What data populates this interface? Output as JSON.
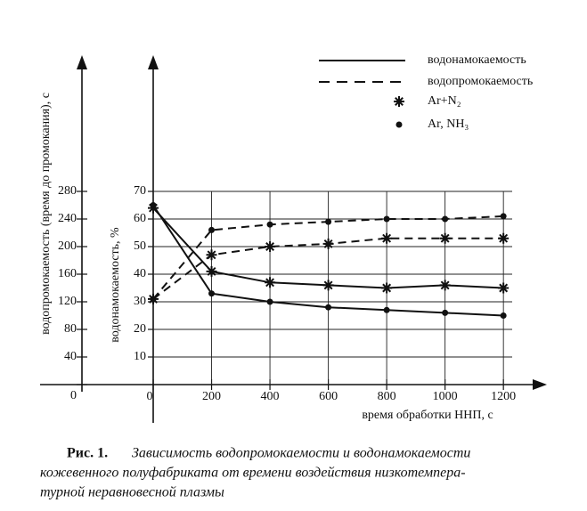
{
  "chart_data": {
    "type": "line",
    "ylabel": "водонамокаемость, %",
    "y2label": "водопромокаемость (время до промокания), с",
    "xlabel": "время обработки ННП, с",
    "caption_label": "Рис. 1.",
    "caption": [
      "Зависимость водопромокаемости и водонамокаемости",
      "кожевенного полуфабриката от времени воздействия низкотемпера-",
      "турной неравновесной плазмы"
    ],
    "x": [
      0,
      200,
      400,
      600,
      800,
      1000,
      1200
    ],
    "xlim": [
      0,
      1230
    ],
    "xticks": [
      0,
      200,
      400,
      600,
      800,
      1000,
      1200
    ],
    "ylim": [
      0,
      70
    ],
    "yticks": [
      10,
      20,
      30,
      40,
      50,
      60,
      70
    ],
    "y2lim": [
      0,
      280
    ],
    "y2ticks": [
      0,
      40,
      80,
      120,
      160,
      200,
      240,
      280
    ],
    "grid": true,
    "color": "#111111",
    "series": [
      {
        "line": "solid",
        "marker": "star",
        "values": [
          64,
          41,
          37,
          36,
          35,
          36,
          35
        ]
      },
      {
        "line": "solid",
        "marker": "dot",
        "values": [
          65,
          33,
          30,
          28,
          27,
          26,
          25
        ]
      },
      {
        "line": "dashed",
        "marker": "star",
        "axis": "y2",
        "values": [
          124,
          188,
          200,
          204,
          212,
          212,
          212
        ]
      },
      {
        "line": "dashed",
        "marker": "dot",
        "axis": "y2",
        "values": [
          124,
          224,
          232,
          236,
          240,
          240,
          244
        ]
      }
    ],
    "legend": [
      {
        "label": "водонамокаемость",
        "line": "solid"
      },
      {
        "label": "водопромокаемость",
        "line": "dashed"
      },
      {
        "label": "Ar+N₂",
        "marker": "star"
      },
      {
        "label": "Ar, NH₃",
        "marker": "dot"
      }
    ]
  }
}
